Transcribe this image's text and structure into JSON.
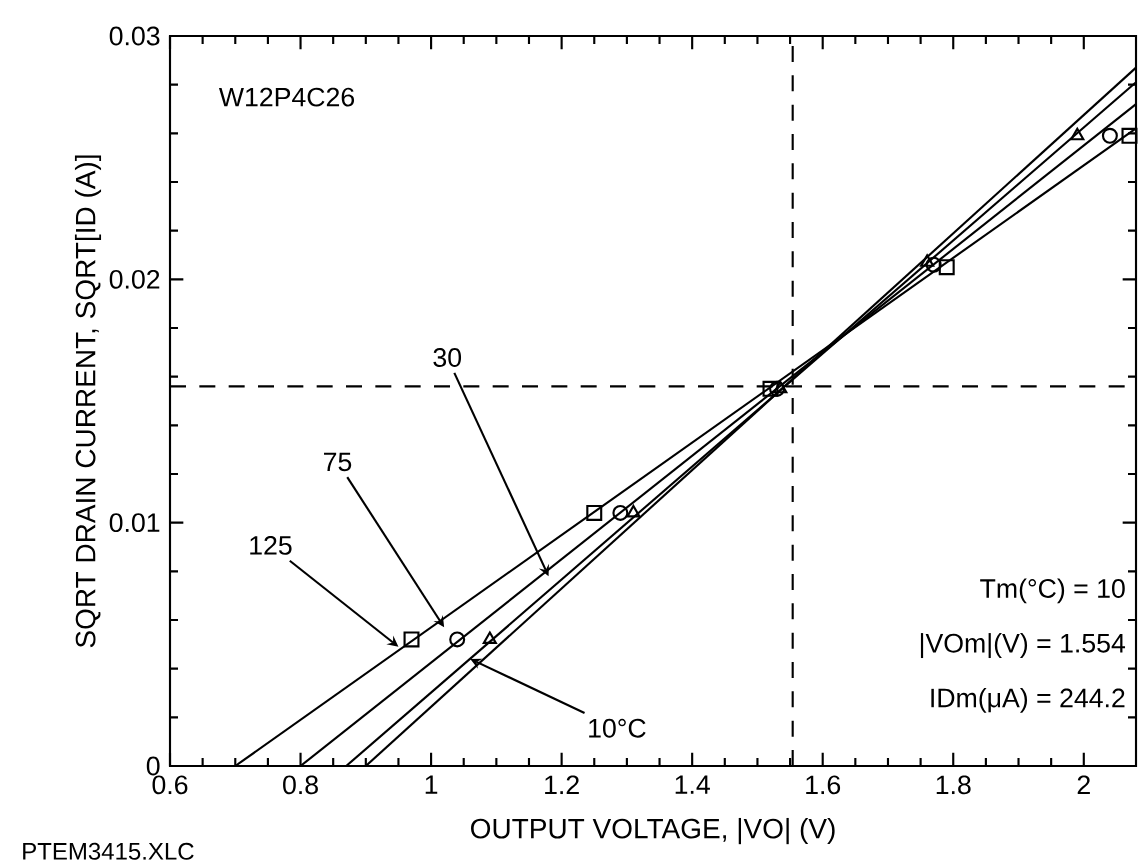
{
  "chart_data": {
    "type": "line",
    "xlabel": "OUTPUT VOLTAGE, |VO| (V)",
    "ylabel": "SQRT DRAIN CURRENT, SQRT[ID (A)]",
    "xlim": [
      0.6,
      2.08
    ],
    "ylim": [
      0,
      0.03
    ],
    "xticks": [
      0.6,
      0.8,
      1,
      1.2,
      1.4,
      1.6,
      1.8,
      2
    ],
    "yticks": [
      0,
      0.01,
      0.02,
      0.03
    ],
    "grid": false,
    "series": [
      {
        "color": "#000000",
        "marker": "none",
        "line_style": "solid",
        "x": [
          0.7,
          2.08
        ],
        "values": [
          0,
          0.0262
        ]
      },
      {
        "color": "#000000",
        "marker": "none",
        "line_style": "solid",
        "x": [
          0.8,
          2.08
        ],
        "values": [
          0,
          0.0272
        ]
      },
      {
        "color": "#000000",
        "marker": "none",
        "line_style": "solid",
        "x": [
          0.87,
          2.08
        ],
        "values": [
          0,
          0.0281
        ]
      },
      {
        "color": "#000000",
        "marker": "none",
        "line_style": "solid",
        "x": [
          0.9,
          2.08
        ],
        "values": [
          0,
          0.0287
        ]
      },
      {
        "type": "scatter",
        "color": "#000000",
        "marker": "square",
        "x": [
          0.97,
          1.25,
          1.52,
          1.79,
          2.07
        ],
        "values": [
          0.0052,
          0.0104,
          0.0155,
          0.0205,
          0.0259
        ]
      },
      {
        "type": "scatter",
        "color": "#000000",
        "marker": "circle",
        "x": [
          1.04,
          1.29,
          1.53,
          1.77,
          2.04
        ],
        "values": [
          0.0052,
          0.0104,
          0.0155,
          0.0206,
          0.0259
        ]
      },
      {
        "type": "scatter",
        "color": "#000000",
        "marker": "triangle",
        "x": [
          1.09,
          1.31,
          1.535,
          1.76,
          1.99
        ],
        "values": [
          0.0052,
          0.0104,
          0.0155,
          0.0207,
          0.0259
        ]
      }
    ],
    "ref_lines": [
      {
        "axis": "x",
        "value": 1.554,
        "line_style": "dashed"
      },
      {
        "axis": "y",
        "value": 0.0156,
        "line_style": "dashed"
      }
    ],
    "annotations": [
      {
        "text": "125",
        "x": 0.95,
        "y": 0.0049
      },
      {
        "text": "75",
        "x": 1.02,
        "y": 0.0057
      },
      {
        "text": "30",
        "x": 1.18,
        "y": 0.0078
      },
      {
        "text": "10°C",
        "x": 1.06,
        "y": 0.0044
      },
      "W12P4C26",
      "Tm(°C)  =  10",
      "|VOm|(V)  =  1.554",
      "IDm(μA)  =  244.2",
      "PTEM3415.XLC"
    ]
  }
}
